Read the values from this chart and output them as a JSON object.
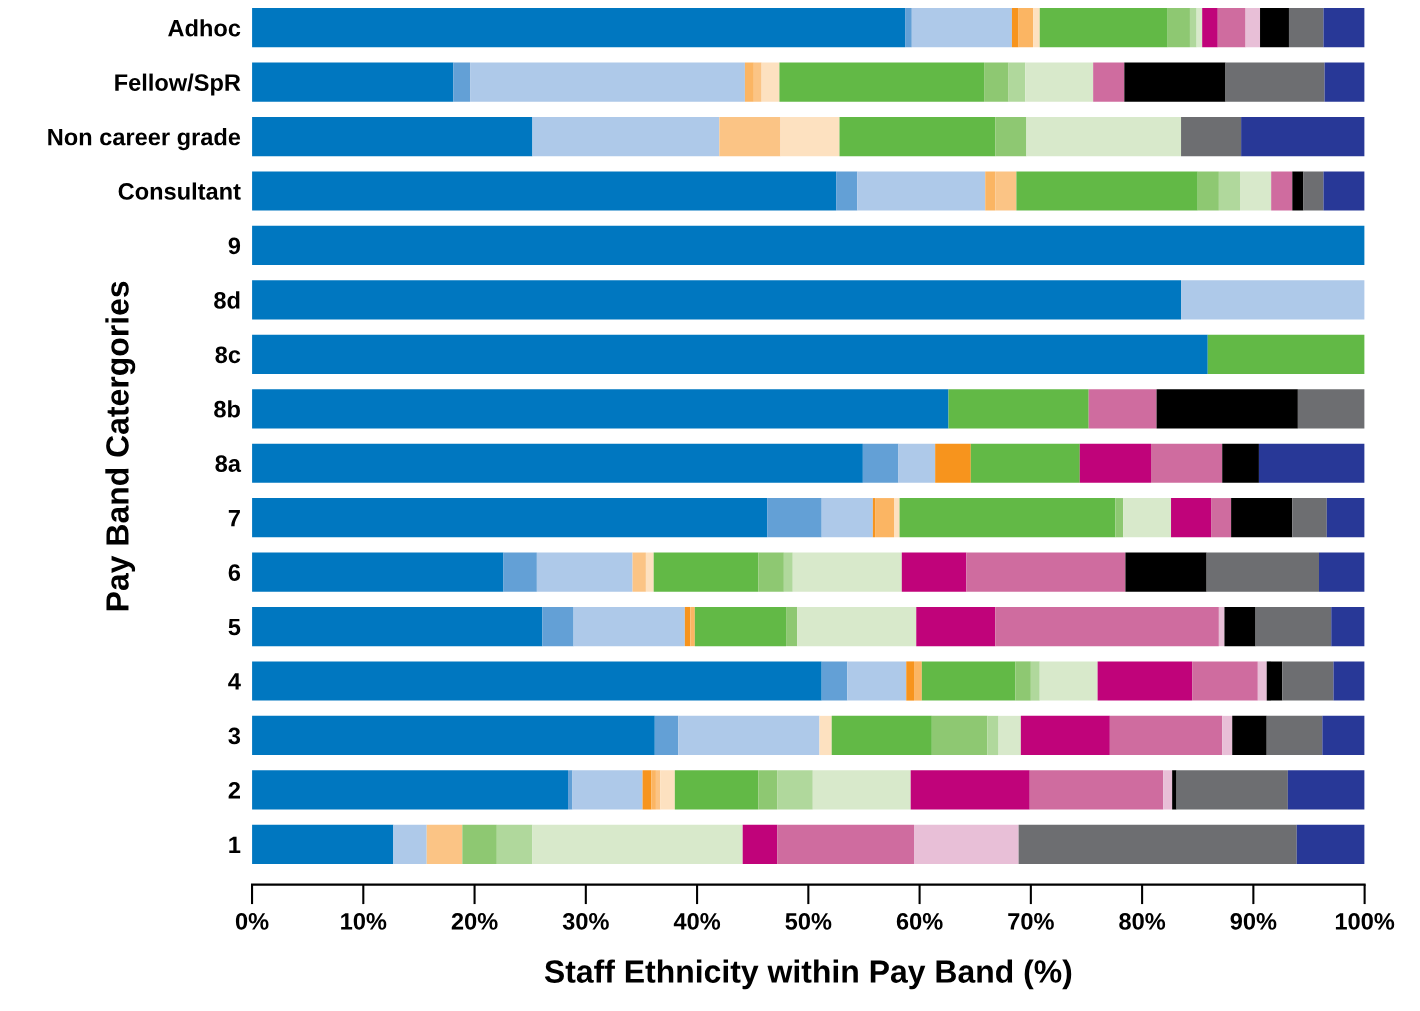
{
  "chart_data": {
    "type": "bar",
    "orientation": "horizontal",
    "stacked": true,
    "xlabel": "Staff Ethnicity within Pay Band (%)",
    "ylabel": "Pay Band Catergories",
    "categories": [
      "Adhoc",
      "Fellow/SpR",
      "Non career grade",
      "Consultant",
      "9",
      "8d",
      "8c",
      "8b",
      "8a",
      "7",
      "6",
      "5",
      "4",
      "3",
      "2",
      "1"
    ],
    "xlim": [
      0,
      100
    ],
    "xticks": [
      {
        "value": 0,
        "label": "0%"
      },
      {
        "value": 10,
        "label": "10%"
      },
      {
        "value": 20,
        "label": "20%"
      },
      {
        "value": 30,
        "label": "30%"
      },
      {
        "value": 40,
        "label": "40%"
      },
      {
        "value": 50,
        "label": "50%"
      },
      {
        "value": 60,
        "label": "60%"
      },
      {
        "value": 70,
        "label": "70%"
      },
      {
        "value": 80,
        "label": "80%"
      },
      {
        "value": 90,
        "label": "90%"
      },
      {
        "value": 100,
        "label": "100%"
      }
    ],
    "grid": false,
    "series": [
      {
        "color": "#0077c0",
        "values": [
          58.7,
          18.1,
          25.2,
          52.5,
          100,
          83.5,
          85.9,
          62.6,
          54.9,
          46.3,
          22.6,
          26.1,
          51.2,
          36.2,
          28.4,
          12.7
        ]
      },
      {
        "color": "#63a0d6",
        "values": [
          0.6,
          1.5,
          null,
          1.9,
          null,
          null,
          null,
          null,
          3.2,
          4.9,
          3.0,
          2.8,
          2.3,
          2.1,
          0.4,
          null
        ]
      },
      {
        "color": "#aec9e9",
        "values": [
          9.0,
          24.7,
          16.8,
          11.5,
          null,
          16.5,
          null,
          null,
          3.3,
          4.6,
          8.6,
          10.0,
          5.3,
          12.7,
          6.3,
          3.0
        ]
      },
      {
        "color": "#f7941d",
        "values": [
          0.6,
          null,
          null,
          null,
          null,
          null,
          null,
          null,
          3.2,
          0.2,
          null,
          0.5,
          0.7,
          null,
          0.8,
          null
        ]
      },
      {
        "color": "#fbb563",
        "values": [
          1.3,
          0.8,
          null,
          0.9,
          null,
          null,
          null,
          null,
          null,
          1.7,
          null,
          0.4,
          0.7,
          null,
          0.4,
          null
        ]
      },
      {
        "color": "#fbc485",
        "values": [
          null,
          0.7,
          5.5,
          1.9,
          null,
          null,
          null,
          null,
          null,
          null,
          1.2,
          null,
          null,
          null,
          0.4,
          3.2
        ]
      },
      {
        "color": "#fde1c0",
        "values": [
          0.6,
          1.6,
          5.3,
          null,
          null,
          null,
          null,
          null,
          null,
          0.5,
          0.7,
          null,
          null,
          1.1,
          1.3,
          null
        ]
      },
      {
        "color": "#62b946",
        "values": [
          11.5,
          18.4,
          14.0,
          16.3,
          null,
          null,
          14.1,
          12.6,
          9.8,
          19.4,
          9.4,
          8.2,
          8.4,
          9.0,
          7.5,
          null
        ]
      },
      {
        "color": "#8ec872",
        "values": [
          2.0,
          2.2,
          2.8,
          1.9,
          null,
          null,
          null,
          null,
          null,
          0.7,
          2.3,
          1.0,
          1.4,
          5.0,
          1.7,
          3.1
        ]
      },
      {
        "color": "#b0d89c",
        "values": [
          0.6,
          1.5,
          null,
          1.9,
          null,
          null,
          null,
          null,
          null,
          null,
          0.8,
          null,
          0.8,
          1.0,
          3.2,
          3.2
        ]
      },
      {
        "color": "#d8e9cb",
        "values": [
          0.5,
          6.1,
          13.9,
          2.8,
          null,
          null,
          null,
          null,
          null,
          4.3,
          9.8,
          10.7,
          5.2,
          2.0,
          8.8,
          18.9
        ]
      },
      {
        "color": "#c0037a",
        "values": [
          1.4,
          null,
          null,
          null,
          null,
          null,
          null,
          null,
          6.4,
          3.6,
          5.8,
          7.1,
          8.5,
          8.0,
          10.7,
          3.1
        ]
      },
      {
        "color": "#cf6c9f",
        "values": [
          2.5,
          2.8,
          null,
          1.9,
          null,
          null,
          null,
          6.1,
          6.4,
          1.8,
          14.3,
          20.1,
          5.9,
          10.1,
          12.0,
          12.3
        ]
      },
      {
        "color": "#e8bfd7",
        "values": [
          1.3,
          null,
          null,
          null,
          null,
          null,
          null,
          null,
          null,
          null,
          null,
          0.5,
          0.8,
          0.9,
          0.8,
          9.4
        ]
      },
      {
        "color": "#000000",
        "values": [
          2.6,
          9.1,
          null,
          1.0,
          null,
          null,
          null,
          12.7,
          3.3,
          5.5,
          7.3,
          2.8,
          1.4,
          3.1,
          0.4,
          null
        ]
      },
      {
        "color": "#6d6e71",
        "values": [
          3.1,
          8.9,
          5.4,
          1.8,
          null,
          null,
          null,
          6.0,
          null,
          3.1,
          10.1,
          6.8,
          4.6,
          5.0,
          10.0,
          25.0
        ]
      },
      {
        "color": "#283897",
        "values": [
          3.7,
          3.6,
          11.1,
          3.7,
          null,
          null,
          null,
          null,
          9.5,
          3.4,
          4.1,
          3.0,
          2.8,
          3.8,
          6.9,
          6.1
        ]
      }
    ]
  }
}
